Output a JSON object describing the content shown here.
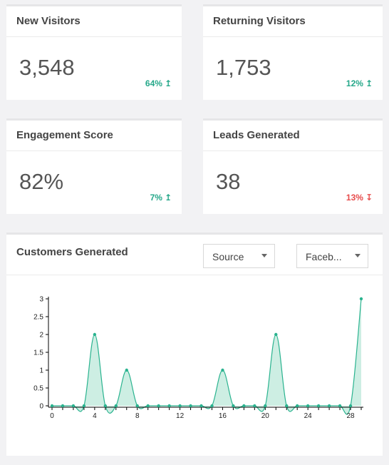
{
  "cards": [
    {
      "title": "New Visitors",
      "value": "3,548",
      "change": "64%",
      "direction": "up"
    },
    {
      "title": "Returning Visitors",
      "value": "1,753",
      "change": "12%",
      "direction": "up"
    },
    {
      "title": "Engagement Score",
      "value": "82%",
      "change": "7%",
      "direction": "up"
    },
    {
      "title": "Leads Generated",
      "value": "38",
      "change": "13%",
      "direction": "down"
    }
  ],
  "colors": {
    "up": "#26a88a",
    "down": "#e74c4c",
    "series": "#2ab38f",
    "series_fill": "#cdeee3"
  },
  "customers": {
    "title": "Customers Generated",
    "source_select": {
      "selected": "Source"
    },
    "channel_select": {
      "selected": "Faceb..."
    }
  },
  "chart_data": {
    "type": "area",
    "x": [
      0,
      1,
      2,
      3,
      4,
      5,
      6,
      7,
      8,
      9,
      10,
      11,
      12,
      13,
      14,
      15,
      16,
      17,
      18,
      19,
      20,
      21,
      22,
      23,
      24,
      25,
      26,
      27,
      28,
      29
    ],
    "values": [
      0,
      0,
      0,
      0,
      2,
      0,
      0,
      1,
      0,
      0,
      0,
      0,
      0,
      0,
      0,
      0,
      1,
      0,
      0,
      0,
      0,
      2,
      0,
      0,
      0,
      0,
      0,
      0,
      0,
      3
    ],
    "xticks": [
      0,
      4,
      8,
      12,
      16,
      20,
      24,
      28
    ],
    "yticks": [
      0,
      0.5,
      1,
      1.5,
      2,
      2.5,
      3
    ],
    "ytick_labels": [
      "0",
      "0.5",
      "1",
      "1.5",
      "2",
      "2.5",
      "3"
    ],
    "xlim": [
      0,
      29
    ],
    "ylim": [
      0,
      3
    ],
    "grid": false,
    "xlabel": "",
    "ylabel": ""
  }
}
